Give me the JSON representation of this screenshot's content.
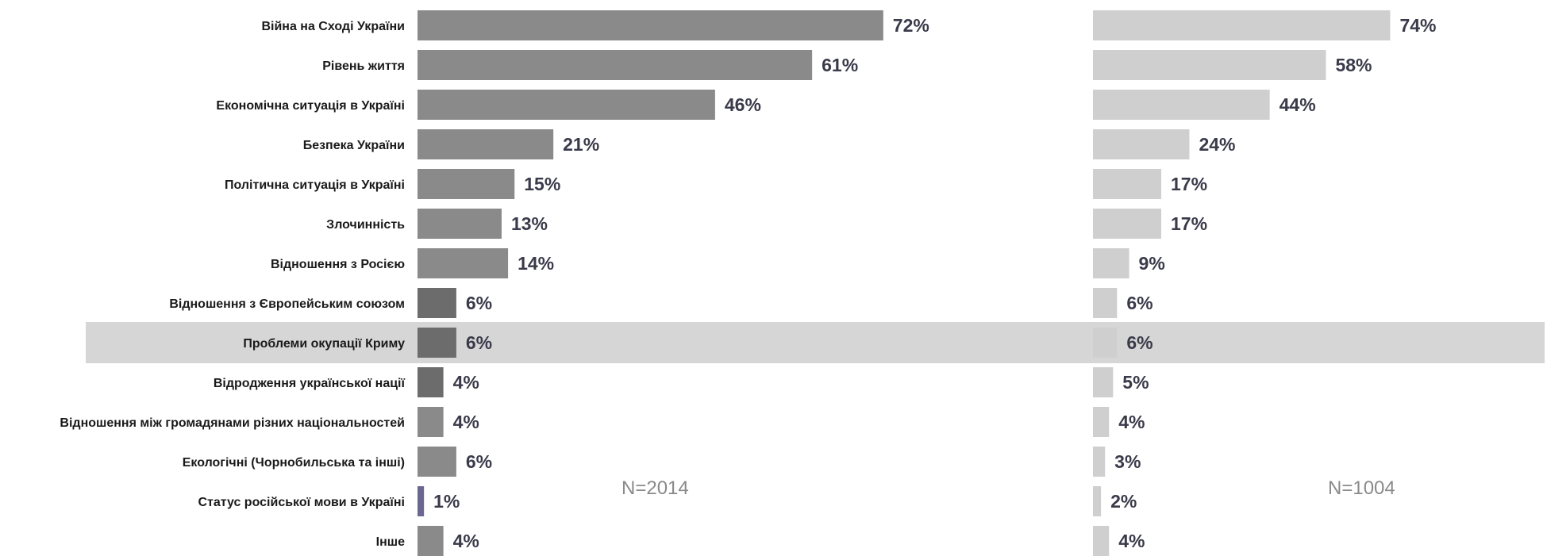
{
  "colors": {
    "left_bar": "#8a8a8a",
    "left_bar_dark": "#6c6c6c",
    "left_bar_thin": "#6a6890",
    "right_bar": "#cfcfcf",
    "highlight_band": "#d6d6d6",
    "value_text": "#3a3a4a"
  },
  "chart_data": [
    {
      "type": "bar",
      "orientation": "horizontal",
      "categories": [
        "Війна на Сході України",
        "Рівень життя",
        "Економічна ситуація в Україні",
        "Безпека України",
        "Політична ситуація в Україні",
        "Злочинність",
        "Відношення з Росією",
        "Відношення з Європейським союзом",
        "Проблеми окупації Криму",
        "Відродження української нації",
        "Відношення між громадянами різних  національностей",
        "Екологічні (Чорнобильська та інші)",
        "Статус російської мови в Україні",
        "Інше"
      ],
      "values": [
        72,
        61,
        46,
        21,
        15,
        13,
        14,
        6,
        6,
        4,
        4,
        6,
        1,
        4
      ],
      "value_labels": [
        "72%",
        "61%",
        "46%",
        "21%",
        "15%",
        "13%",
        "14%",
        "6%",
        "6%",
        "4%",
        "4%",
        "6%",
        "1%",
        "4%"
      ],
      "annotation": "N=2014",
      "highlighted_category": "Проблеми окупації Криму"
    },
    {
      "type": "bar",
      "orientation": "horizontal",
      "values": [
        74,
        58,
        44,
        24,
        17,
        17,
        9,
        6,
        6,
        5,
        4,
        3,
        2,
        4
      ],
      "value_labels": [
        "74%",
        "58%",
        "44%",
        "24%",
        "17%",
        "17%",
        "9%",
        "6%",
        "6%",
        "5%",
        "4%",
        "3%",
        "2%",
        "4%"
      ],
      "annotation": "N=1004"
    }
  ]
}
